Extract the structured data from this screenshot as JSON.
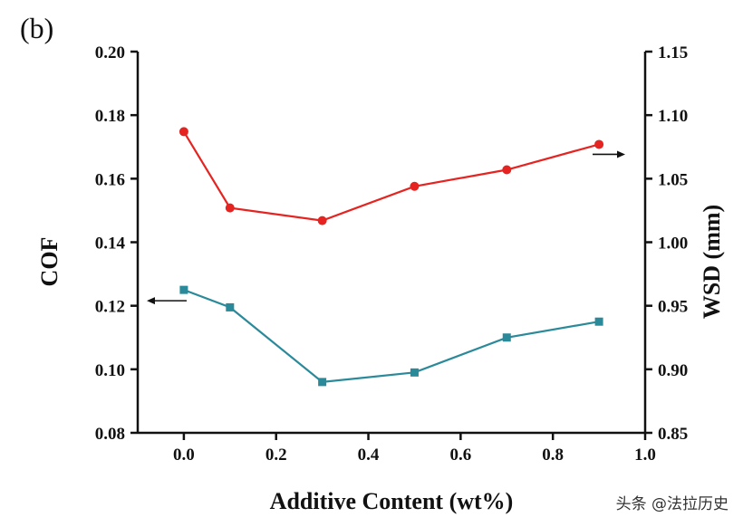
{
  "panel_label": "(b)",
  "watermark": "头条 @法拉历史",
  "colors": {
    "cof": "#2a8a9a",
    "wsd": "#e52421",
    "axis": "#111111"
  },
  "chart_data": {
    "type": "line",
    "xlabel": "Additive Content (wt%)",
    "ylabel_left": "COF",
    "ylabel_right": "WSD (mm)",
    "xlim": [
      -0.1,
      1.0
    ],
    "ylim_left": [
      0.08,
      0.2
    ],
    "ylim_right": [
      0.85,
      1.15
    ],
    "x_ticks": [
      "0.0",
      "0.2",
      "0.4",
      "0.6",
      "0.8",
      "1.0"
    ],
    "y_ticks_left": [
      "0.08",
      "0.10",
      "0.12",
      "0.14",
      "0.16",
      "0.18",
      "0.20"
    ],
    "y_ticks_right": [
      "0.85",
      "0.90",
      "0.95",
      "1.00",
      "1.05",
      "1.10",
      "1.15"
    ],
    "grid": false,
    "series": [
      {
        "axis": "left",
        "marker": "square",
        "color": "#2a8a9a",
        "x": [
          0.0,
          0.1,
          0.3,
          0.5,
          0.7,
          0.9
        ],
        "y": [
          0.125,
          0.1195,
          0.096,
          0.099,
          0.11,
          0.115
        ]
      },
      {
        "axis": "right",
        "marker": "circle",
        "color": "#e52421",
        "x": [
          0.0,
          0.1,
          0.3,
          0.5,
          0.7,
          0.9
        ],
        "y": [
          1.087,
          1.027,
          1.017,
          1.044,
          1.057,
          1.077
        ]
      }
    ],
    "annotations": [
      {
        "type": "arrow",
        "direction": "left",
        "points_to": "left-axis",
        "series": 0
      },
      {
        "type": "arrow",
        "direction": "right",
        "points_to": "right-axis",
        "series": 1
      }
    ]
  }
}
